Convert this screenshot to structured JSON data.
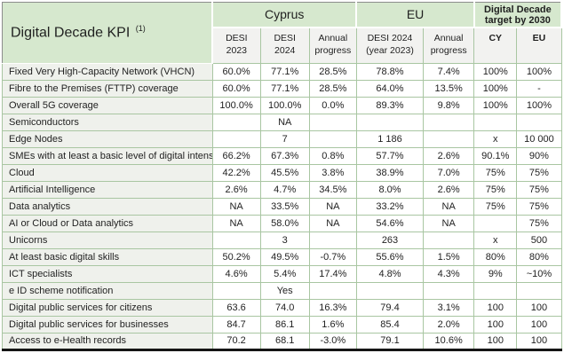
{
  "title": {
    "text": "Digital Decade KPI ",
    "superscript": "(1)"
  },
  "header": {
    "groups": [
      {
        "label": "Cyprus",
        "colspan": 3
      },
      {
        "label": "EU",
        "colspan": 2
      },
      {
        "label": "Digital Decade\ntarget by 2030",
        "colspan": 2
      }
    ],
    "subcolumns": [
      {
        "label": "DESI\n2023",
        "bold": false
      },
      {
        "label": "DESI\n2024",
        "bold": false
      },
      {
        "label": "Annual\nprogress",
        "bold": false
      },
      {
        "label": "DESI 2024\n(year 2023)",
        "bold": false
      },
      {
        "label": "Annual\nprogress",
        "bold": false
      },
      {
        "label": "CY",
        "bold": true
      },
      {
        "label": "EU",
        "bold": true
      }
    ]
  },
  "table": {
    "rows": [
      {
        "label": "Fixed Very High-Capacity Network (VHCN)",
        "values": [
          "60.0%",
          "77.1%",
          "28.5%",
          "78.8%",
          "7.4%",
          "100%",
          "100%"
        ]
      },
      {
        "label": "Fibre to the Premises (FTTP) coverage",
        "values": [
          "60.0%",
          "77.1%",
          "28.5%",
          "64.0%",
          "13.5%",
          "100%",
          "-"
        ]
      },
      {
        "label": "Overall 5G coverage",
        "values": [
          "100.0%",
          "100.0%",
          "0.0%",
          "89.3%",
          "9.8%",
          "100%",
          "100%"
        ]
      },
      {
        "label": "Semiconductors",
        "values": [
          "",
          "NA",
          "",
          "",
          "",
          "",
          ""
        ]
      },
      {
        "label": "Edge Nodes",
        "values": [
          "",
          "7",
          "",
          "1 186",
          "",
          "x",
          "10 000"
        ]
      },
      {
        "label": "SMEs with at least a basic level of digital intensity",
        "values": [
          "66.2%",
          "67.3%",
          "0.8%",
          "57.7%",
          "2.6%",
          "90.1%",
          "90%"
        ]
      },
      {
        "label": "Cloud",
        "values": [
          "42.2%",
          "45.5%",
          "3.8%",
          "38.9%",
          "7.0%",
          "75%",
          "75%"
        ]
      },
      {
        "label": "Artificial Intelligence",
        "values": [
          "2.6%",
          "4.7%",
          "34.5%",
          "8.0%",
          "2.6%",
          "75%",
          "75%"
        ]
      },
      {
        "label": "Data analytics",
        "values": [
          "NA",
          "33.5%",
          "NA",
          "33.2%",
          "NA",
          "75%",
          "75%"
        ]
      },
      {
        "label": "AI or Cloud or Data analytics",
        "values": [
          "NA",
          "58.0%",
          "NA",
          "54.6%",
          "NA",
          "",
          "75%"
        ]
      },
      {
        "label": "Unicorns",
        "values": [
          "",
          "3",
          "",
          "263",
          "",
          "x",
          "500"
        ]
      },
      {
        "label": "At least basic digital skills",
        "values": [
          "50.2%",
          "49.5%",
          "-0.7%",
          "55.6%",
          "1.5%",
          "80%",
          "80%"
        ]
      },
      {
        "label": "ICT specialists",
        "values": [
          "4.6%",
          "5.4%",
          "17.4%",
          "4.8%",
          "4.3%",
          "9%",
          "~10%"
        ]
      },
      {
        "label": "e ID scheme notification",
        "values": [
          "",
          "Yes",
          "",
          "",
          "",
          "",
          ""
        ]
      },
      {
        "label": "Digital public services for citizens",
        "values": [
          "63.6",
          "74.0",
          "16.3%",
          "79.4",
          "3.1%",
          "100",
          "100"
        ]
      },
      {
        "label": "Digital public services for businesses",
        "values": [
          "84.7",
          "86.1",
          "1.6%",
          "85.4",
          "2.0%",
          "100",
          "100"
        ]
      },
      {
        "label": "Access to e-Health records",
        "values": [
          "70.2",
          "68.1",
          "-3.0%",
          "79.1",
          "10.6%",
          "100",
          "100"
        ]
      }
    ]
  },
  "colors": {
    "header_green": "#d6e8ce",
    "border_green": "#a9c6a2",
    "label_bg": "#eff1ec",
    "subheader_bg": "#f2f2f0",
    "bottom_border": "#151515"
  }
}
